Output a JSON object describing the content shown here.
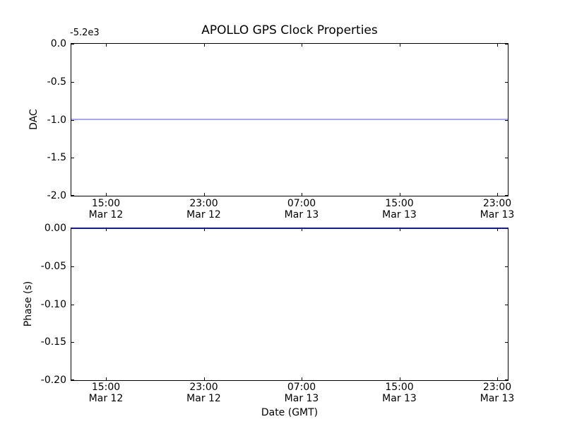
{
  "figure_title": "APOLLO GPS Clock Properties",
  "colors": {
    "background": "#ffffff",
    "axes_frame": "#000000",
    "text": "#000000",
    "series_line": "#0000ff"
  },
  "chart_data": [
    {
      "type": "line",
      "subplot": "top",
      "title": "APOLLO GPS Clock Properties",
      "ylabel": "DAC",
      "xlabel": "",
      "y_offset_text": "-5.2e3",
      "ylim": [
        -2.0,
        0.0
      ],
      "yticks": [
        0.0,
        -0.5,
        -1.0,
        -1.5,
        -2.0
      ],
      "ytick_labels": [
        "0.0",
        "-0.5",
        "-1.0",
        "-1.5",
        "-2.0"
      ],
      "xticks": [
        {
          "time": "15:00",
          "date": "Mar 12"
        },
        {
          "time": "23:00",
          "date": "Mar 12"
        },
        {
          "time": "07:00",
          "date": "Mar 13"
        },
        {
          "time": "15:00",
          "date": "Mar 13"
        },
        {
          "time": "23:00",
          "date": "Mar 13"
        }
      ],
      "grid": false,
      "legend": null,
      "series": [
        {
          "name": "DAC",
          "color": "#0000ff",
          "shape": "constant-horizontal-line",
          "constant_y": -1.0,
          "actual_value_with_offset": -5201.0
        }
      ]
    },
    {
      "type": "line",
      "subplot": "bottom",
      "title": "",
      "ylabel": "Phase (s)",
      "xlabel": "Date (GMT)",
      "y_offset_text": "",
      "ylim": [
        -0.2,
        0.0
      ],
      "yticks": [
        0.0,
        -0.05,
        -0.1,
        -0.15,
        -0.2
      ],
      "ytick_labels": [
        "0.00",
        "-0.05",
        "-0.10",
        "-0.15",
        "-0.20"
      ],
      "xticks": [
        {
          "time": "15:00",
          "date": "Mar 12"
        },
        {
          "time": "23:00",
          "date": "Mar 12"
        },
        {
          "time": "07:00",
          "date": "Mar 13"
        },
        {
          "time": "15:00",
          "date": "Mar 13"
        },
        {
          "time": "23:00",
          "date": "Mar 13"
        }
      ],
      "grid": false,
      "legend": null,
      "series": [
        {
          "name": "Phase",
          "color": "#0000ff",
          "shape": "constant-horizontal-line",
          "constant_y": 0.0
        }
      ]
    }
  ]
}
